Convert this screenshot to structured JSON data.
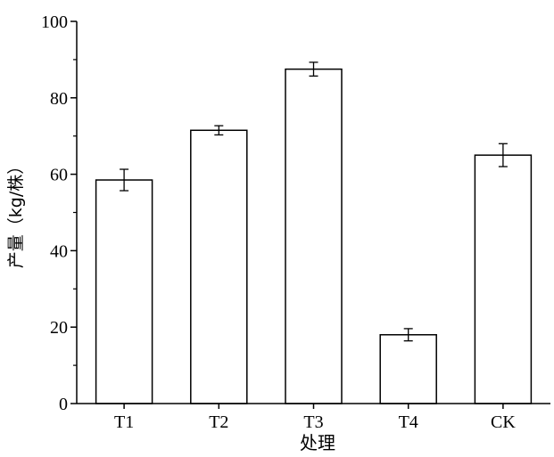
{
  "chart_data": {
    "type": "bar",
    "title": "",
    "xlabel": "处理",
    "ylabel": "产量（kg/株）",
    "categories": [
      "T1",
      "T2",
      "T3",
      "T4",
      "CK"
    ],
    "values": [
      58.5,
      71.5,
      87.5,
      18.0,
      65.0
    ],
    "errors": [
      2.8,
      1.2,
      1.8,
      1.6,
      3.0
    ],
    "ylim": [
      0,
      100
    ],
    "yticks": [
      0,
      20,
      40,
      60,
      80,
      100
    ],
    "grid": false,
    "bar_fill": "#ffffff",
    "stroke_color": "#000000"
  }
}
